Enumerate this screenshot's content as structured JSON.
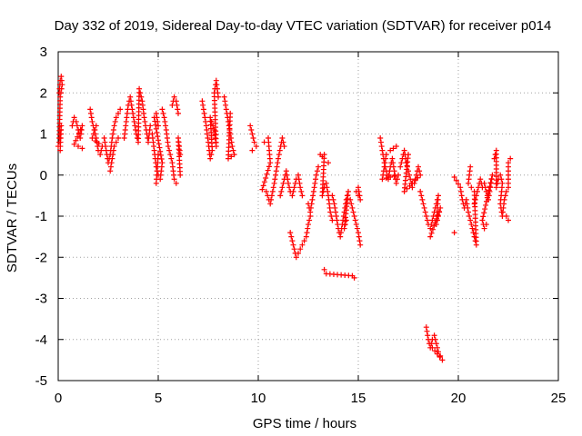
{
  "chart_data": {
    "type": "scatter",
    "title": "Day 332 of 2019, Sidereal Day-to-day VTEC variation (SDTVAR) for receiver p014",
    "xlabel": "GPS time / hours",
    "ylabel": "SDTVAR / TECUs",
    "xlim": [
      0,
      25
    ],
    "ylim": [
      -5,
      3
    ],
    "xticks": [
      0,
      5,
      10,
      15,
      20,
      25
    ],
    "yticks": [
      -5,
      -4,
      -3,
      -2,
      -1,
      0,
      1,
      2,
      3
    ],
    "grid": true,
    "marker": "+",
    "series": [
      {
        "name": "SDTVAR",
        "color": "#ff0000",
        "segments": [
          [
            [
              0.0,
              0.7
            ],
            [
              0.1,
              0.9
            ],
            [
              0.15,
              1.2
            ],
            [
              0.1,
              0.6
            ],
            [
              0.05,
              2.0
            ],
            [
              0.1,
              2.3
            ],
            [
              0.15,
              2.4
            ],
            [
              0.2,
              2.2
            ],
            [
              0.1,
              1.9
            ],
            [
              0.05,
              0.9
            ]
          ],
          [
            [
              0.7,
              1.2
            ],
            [
              0.8,
              1.4
            ],
            [
              0.9,
              1.3
            ],
            [
              1.0,
              1.1
            ],
            [
              1.1,
              0.9
            ],
            [
              1.2,
              1.2
            ],
            [
              0.8,
              0.75
            ],
            [
              1.0,
              0.7
            ],
            [
              1.2,
              0.65
            ]
          ],
          [
            [
              1.6,
              1.6
            ],
            [
              1.7,
              1.3
            ],
            [
              1.8,
              1.1
            ],
            [
              1.9,
              0.9
            ],
            [
              2.0,
              0.6
            ],
            [
              2.1,
              0.5
            ],
            [
              2.2,
              0.7
            ],
            [
              1.7,
              0.9
            ],
            [
              1.9,
              1.2
            ]
          ],
          [
            [
              2.3,
              0.9
            ],
            [
              2.4,
              0.6
            ],
            [
              2.5,
              0.3
            ],
            [
              2.6,
              0.5
            ],
            [
              2.7,
              0.9
            ],
            [
              2.8,
              1.2
            ],
            [
              2.9,
              1.4
            ],
            [
              3.0,
              1.5
            ],
            [
              3.1,
              1.6
            ],
            [
              2.6,
              0.1
            ],
            [
              2.8,
              0.7
            ],
            [
              3.0,
              0.9
            ]
          ],
          [
            [
              3.3,
              0.9
            ],
            [
              3.4,
              1.3
            ],
            [
              3.5,
              1.7
            ],
            [
              3.6,
              1.9
            ],
            [
              3.7,
              1.6
            ],
            [
              3.8,
              1.3
            ],
            [
              3.9,
              1.0
            ],
            [
              4.0,
              0.8
            ],
            [
              4.05,
              2.1
            ],
            [
              4.2,
              1.8
            ],
            [
              4.3,
              1.4
            ],
            [
              4.4,
              1.1
            ],
            [
              4.5,
              0.8
            ],
            [
              4.6,
              1.2
            ]
          ],
          [
            [
              4.7,
              1.0
            ],
            [
              4.8,
              0.6
            ],
            [
              4.9,
              0.2
            ],
            [
              5.0,
              0.0
            ],
            [
              5.1,
              -0.1
            ],
            [
              5.2,
              0.3
            ],
            [
              4.8,
              1.4
            ],
            [
              4.9,
              1.5
            ],
            [
              5.0,
              1.2
            ],
            [
              4.9,
              -0.2
            ],
            [
              5.0,
              0.5
            ]
          ],
          [
            [
              5.2,
              1.6
            ],
            [
              5.3,
              1.4
            ],
            [
              5.4,
              1.1
            ],
            [
              5.5,
              0.7
            ],
            [
              5.6,
              0.5
            ],
            [
              5.7,
              0.3
            ],
            [
              5.8,
              -0.1
            ],
            [
              5.9,
              -0.2
            ],
            [
              5.7,
              1.7
            ],
            [
              5.8,
              1.9
            ],
            [
              5.9,
              1.8
            ],
            [
              6.0,
              1.5
            ],
            [
              6.1,
              0.0
            ],
            [
              6.0,
              0.9
            ],
            [
              6.1,
              0.5
            ]
          ],
          [
            [
              7.2,
              1.8
            ],
            [
              7.3,
              1.5
            ],
            [
              7.4,
              1.2
            ],
            [
              7.5,
              0.8
            ],
            [
              7.6,
              0.4
            ],
            [
              7.7,
              0.6
            ],
            [
              7.6,
              1.4
            ],
            [
              7.8,
              1.1
            ],
            [
              7.9,
              0.7
            ],
            [
              7.8,
              2.0
            ],
            [
              7.9,
              2.3
            ],
            [
              8.0,
              1.9
            ]
          ],
          [
            [
              8.3,
              1.9
            ],
            [
              8.4,
              1.6
            ],
            [
              8.5,
              1.3
            ],
            [
              8.6,
              1.0
            ],
            [
              8.7,
              0.7
            ],
            [
              8.8,
              0.5
            ],
            [
              8.5,
              0.4
            ],
            [
              8.6,
              1.5
            ]
          ],
          [
            [
              9.6,
              1.2
            ],
            [
              9.7,
              1.0
            ],
            [
              9.8,
              0.8
            ],
            [
              9.9,
              0.7
            ],
            [
              9.7,
              0.6
            ]
          ],
          [
            [
              10.3,
              0.8
            ],
            [
              10.5,
              0.9
            ],
            [
              10.6,
              0.3
            ],
            [
              10.2,
              -0.35
            ],
            [
              10.4,
              -0.4
            ],
            [
              10.6,
              -0.7
            ],
            [
              10.8,
              -0.2
            ],
            [
              10.9,
              0.1
            ],
            [
              11.0,
              0.4
            ],
            [
              11.2,
              0.9
            ],
            [
              11.3,
              0.7
            ]
          ],
          [
            [
              11.1,
              -0.5
            ],
            [
              11.2,
              -0.3
            ],
            [
              11.3,
              -0.1
            ],
            [
              11.4,
              0.1
            ],
            [
              11.5,
              -0.2
            ],
            [
              11.6,
              -0.4
            ],
            [
              11.7,
              -0.5
            ],
            [
              11.8,
              -0.3
            ],
            [
              11.9,
              -0.1
            ],
            [
              12.0,
              0.0
            ],
            [
              12.1,
              -0.3
            ],
            [
              12.2,
              -0.5
            ]
          ],
          [
            [
              11.6,
              -1.4
            ],
            [
              11.7,
              -1.6
            ],
            [
              11.8,
              -1.8
            ],
            [
              11.9,
              -2.0
            ],
            [
              12.0,
              -1.9
            ],
            [
              12.1,
              -1.8
            ],
            [
              12.2,
              -1.7
            ],
            [
              12.3,
              -1.6
            ],
            [
              12.4,
              -1.5
            ],
            [
              12.5,
              -1.2
            ],
            [
              12.6,
              -1.0
            ]
          ],
          [
            [
              12.5,
              -0.7
            ],
            [
              12.6,
              -0.9
            ],
            [
              12.7,
              -0.6
            ],
            [
              12.8,
              -0.3
            ],
            [
              12.9,
              0.0
            ],
            [
              13.0,
              0.2
            ]
          ],
          [
            [
              13.1,
              0.5
            ],
            [
              13.2,
              0.45
            ],
            [
              13.3,
              0.5
            ],
            [
              13.2,
              -0.5
            ],
            [
              13.3,
              -0.3
            ],
            [
              13.4,
              -0.2
            ],
            [
              13.5,
              -0.5
            ],
            [
              13.6,
              -0.9
            ],
            [
              13.7,
              -1.1
            ],
            [
              13.5,
              0.3
            ]
          ],
          [
            [
              13.7,
              -0.5
            ],
            [
              13.8,
              -0.7
            ],
            [
              13.9,
              -1.0
            ],
            [
              14.0,
              -1.3
            ],
            [
              14.1,
              -1.5
            ],
            [
              14.2,
              -1.2
            ],
            [
              14.3,
              -0.9
            ],
            [
              14.4,
              -0.6
            ],
            [
              14.5,
              -0.4
            ],
            [
              14.3,
              -1.3
            ],
            [
              14.4,
              -1.1
            ]
          ],
          [
            [
              14.6,
              -0.6
            ],
            [
              14.7,
              -0.8
            ],
            [
              14.8,
              -1.0
            ],
            [
              14.9,
              -1.2
            ],
            [
              15.0,
              -1.4
            ],
            [
              15.1,
              -1.7
            ],
            [
              15.0,
              -0.3
            ],
            [
              15.1,
              -0.6
            ],
            [
              14.9,
              -0.4
            ]
          ],
          [
            [
              13.3,
              -2.3
            ],
            [
              13.4,
              -2.4
            ],
            [
              14.7,
              -2.45
            ],
            [
              14.8,
              -2.5
            ]
          ],
          [
            [
              16.1,
              0.9
            ],
            [
              16.2,
              0.6
            ],
            [
              16.3,
              0.3
            ],
            [
              16.4,
              0.1
            ],
            [
              16.5,
              -0.1
            ],
            [
              16.6,
              0.2
            ],
            [
              16.7,
              0.4
            ],
            [
              16.8,
              0.1
            ],
            [
              16.9,
              -0.2
            ],
            [
              17.0,
              0.0
            ],
            [
              16.2,
              -0.1
            ],
            [
              16.4,
              0.5
            ],
            [
              16.6,
              0.6
            ],
            [
              16.9,
              0.7
            ]
          ],
          [
            [
              17.1,
              0.2
            ],
            [
              17.2,
              0.4
            ],
            [
              17.3,
              0.6
            ],
            [
              17.4,
              0.3
            ],
            [
              17.5,
              0.1
            ],
            [
              17.6,
              -0.1
            ],
            [
              17.7,
              -0.3
            ],
            [
              17.8,
              -0.2
            ],
            [
              17.9,
              0.0
            ],
            [
              18.0,
              0.2
            ],
            [
              18.1,
              0.0
            ],
            [
              17.3,
              -0.4
            ],
            [
              17.5,
              0.5
            ]
          ],
          [
            [
              18.1,
              -0.4
            ],
            [
              18.2,
              -0.6
            ],
            [
              18.3,
              -0.8
            ],
            [
              18.4,
              -1.0
            ],
            [
              18.5,
              -1.2
            ],
            [
              18.6,
              -1.3
            ],
            [
              18.7,
              -1.1
            ],
            [
              18.8,
              -0.9
            ],
            [
              18.9,
              -0.7
            ],
            [
              19.0,
              -0.5
            ],
            [
              18.9,
              -1.2
            ],
            [
              19.0,
              -1.0
            ],
            [
              19.1,
              -0.8
            ],
            [
              18.6,
              -1.5
            ]
          ],
          [
            [
              18.4,
              -3.7
            ],
            [
              18.5,
              -4.0
            ],
            [
              18.6,
              -4.2
            ],
            [
              18.7,
              -4.0
            ],
            [
              18.8,
              -3.9
            ],
            [
              18.9,
              -4.1
            ],
            [
              19.0,
              -4.3
            ],
            [
              19.1,
              -4.4
            ],
            [
              19.2,
              -4.5
            ],
            [
              18.7,
              -4.2
            ]
          ],
          [
            [
              19.8,
              -1.4
            ],
            [
              19.8,
              -0.05
            ],
            [
              20.1,
              -0.3
            ],
            [
              20.2,
              -0.6
            ],
            [
              20.3,
              -0.8
            ],
            [
              20.4,
              -0.6
            ],
            [
              20.5,
              -0.9
            ],
            [
              20.6,
              -1.1
            ],
            [
              20.7,
              -1.3
            ],
            [
              20.8,
              -1.5
            ],
            [
              20.9,
              -1.7
            ],
            [
              20.8,
              -0.4
            ],
            [
              20.5,
              -0.2
            ],
            [
              20.6,
              0.2
            ]
          ],
          [
            [
              20.8,
              -0.7
            ],
            [
              20.9,
              -0.5
            ],
            [
              21.0,
              -0.3
            ],
            [
              21.1,
              -0.1
            ],
            [
              21.2,
              -0.3
            ],
            [
              21.3,
              -0.2
            ],
            [
              21.4,
              -0.4
            ],
            [
              21.5,
              -0.6
            ],
            [
              21.6,
              -0.3
            ],
            [
              21.7,
              0.0
            ],
            [
              21.2,
              -1.1
            ],
            [
              21.3,
              -1.3
            ],
            [
              21.4,
              -1.2
            ]
          ],
          [
            [
              21.8,
              0.4
            ],
            [
              21.9,
              0.6
            ],
            [
              21.9,
              -0.3
            ],
            [
              22.0,
              -0.1
            ],
            [
              22.1,
              0.0
            ],
            [
              22.2,
              -0.2
            ],
            [
              22.1,
              -0.7
            ],
            [
              22.2,
              -1.0
            ],
            [
              22.3,
              -0.6
            ],
            [
              22.4,
              -0.4
            ],
            [
              22.5,
              -0.3
            ],
            [
              22.5,
              0.3
            ],
            [
              22.6,
              0.4
            ],
            [
              22.4,
              -1.0
            ],
            [
              22.5,
              -1.1
            ]
          ]
        ]
      }
    ]
  }
}
